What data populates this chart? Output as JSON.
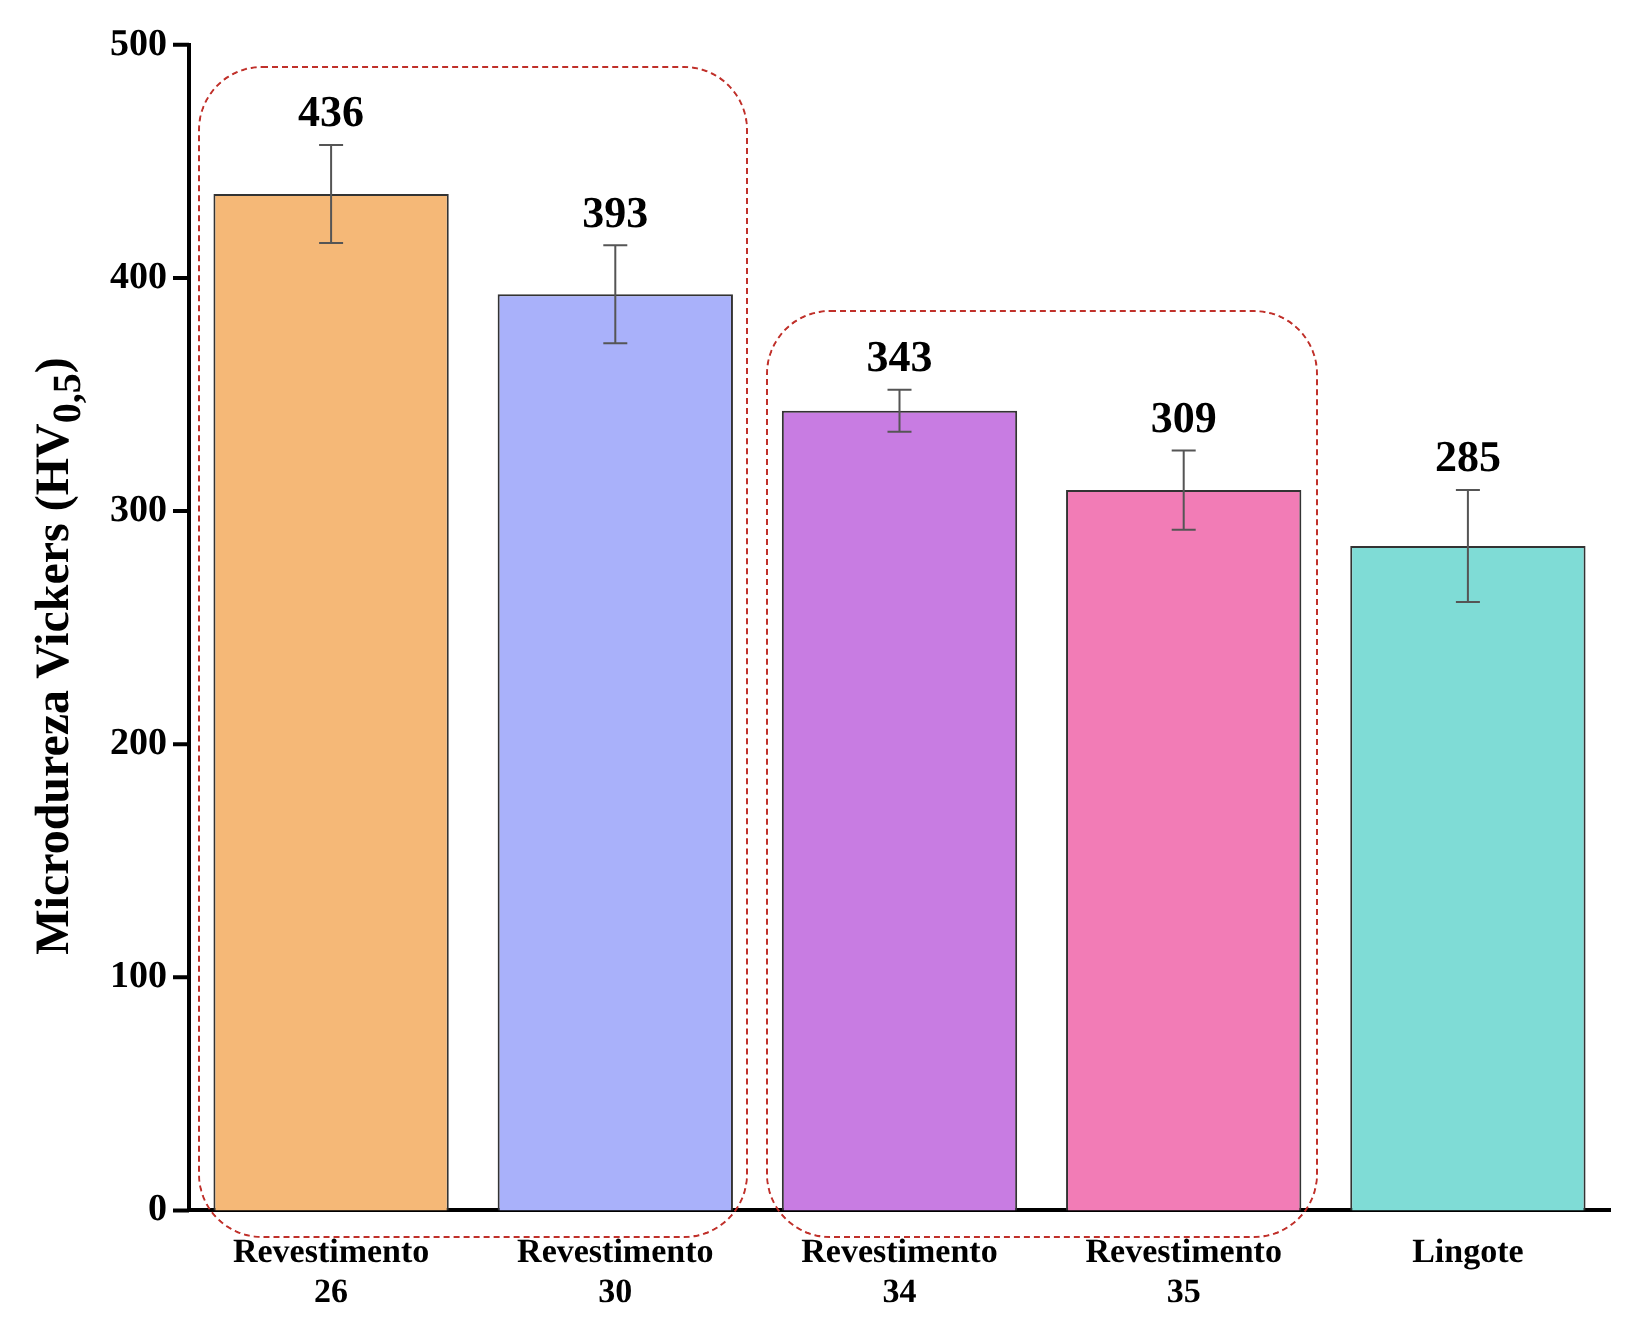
{
  "chart_data": {
    "type": "bar",
    "ylabel": "Microdureza Vickers (HV$_{0,5}$)",
    "categories": [
      "Revestimento 26",
      "Revestimento 30",
      "Revestimento 34",
      "Revestimento 35",
      "Lingote"
    ],
    "values": [
      436,
      393,
      343,
      309,
      285
    ],
    "colors": [
      "#f5b877",
      "#a9b1fa",
      "#c87ce2",
      "#f27cb6",
      "#7fdcd6"
    ],
    "errors": [
      21,
      21,
      9,
      17,
      24
    ],
    "ylim": [
      0,
      500
    ],
    "yticks": [
      0,
      100,
      200,
      300,
      400,
      500
    ],
    "grid": false,
    "legend": false,
    "data_labels": true
  }
}
